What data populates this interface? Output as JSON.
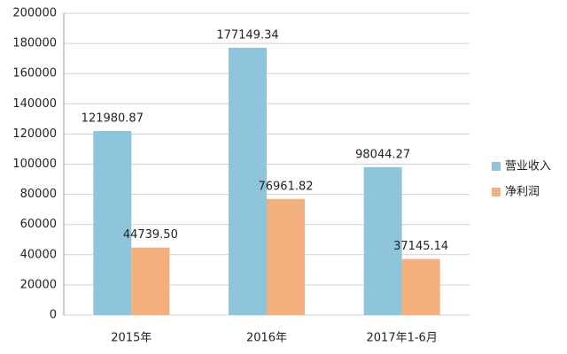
{
  "chart_data": {
    "type": "bar",
    "categories": [
      "2015年",
      "2016年",
      "2017年1-6月"
    ],
    "series": [
      {
        "name": "营业收入",
        "color": "#8ec5dc",
        "values": [
          121980.87,
          177149.34,
          98044.27
        ]
      },
      {
        "name": "净利润",
        "color": "#f3b07c",
        "values": [
          44739.5,
          76961.82,
          37145.14
        ],
        "value_labels": [
          "44739.50",
          "76961.82",
          "37145.14"
        ]
      }
    ],
    "ylim": [
      0,
      200000
    ],
    "yticks": [
      0,
      20000,
      40000,
      60000,
      80000,
      100000,
      120000,
      140000,
      160000,
      180000,
      200000
    ],
    "grid": true,
    "legend": "right"
  }
}
